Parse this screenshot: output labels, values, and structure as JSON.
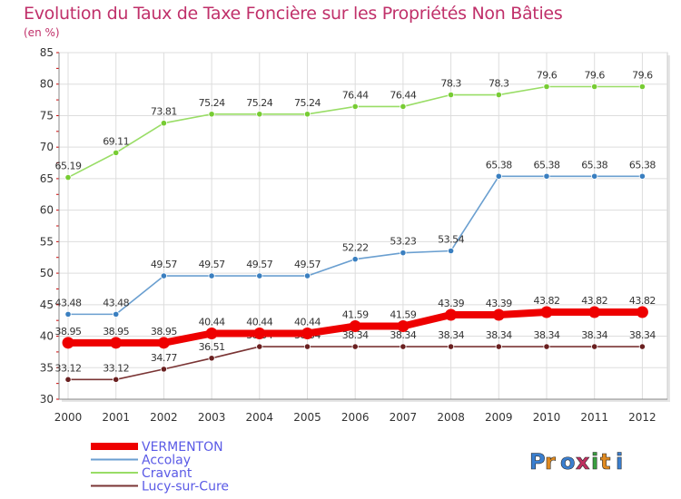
{
  "title": "Evolution du Taux de Taxe Foncière sur les Propriétés Non Bâties",
  "subtitle": "(en %)",
  "logo": "Proxiti",
  "colors": {
    "title": "#c0306a",
    "legend_text": "#5a5ae6",
    "axis": "#888888",
    "grid": "#dddddd",
    "tick_red": "#cc0000"
  },
  "chart_data": {
    "type": "line",
    "title": "Evolution du Taux de Taxe Foncière sur les Propriétés Non Bâties",
    "ylabel": "(en %)",
    "xlabel": "",
    "x": [
      "2000",
      "2001",
      "2002",
      "2003",
      "2004",
      "2005",
      "2006",
      "2007",
      "2008",
      "2009",
      "2010",
      "2011",
      "2012"
    ],
    "ylim": [
      30,
      85
    ],
    "yticks": [
      30,
      35,
      40,
      45,
      50,
      55,
      60,
      65,
      70,
      75,
      80,
      85
    ],
    "grid": true,
    "legend_position": "bottom-left",
    "series": [
      {
        "name": "Cravant",
        "color": "#99dd66",
        "marker": "#77cc33",
        "emphasis": false,
        "values": [
          65.19,
          69.11,
          73.81,
          75.24,
          75.24,
          75.24,
          76.44,
          76.44,
          78.3,
          78.3,
          79.6,
          79.6,
          79.6
        ],
        "labels": [
          "65.19",
          "69.11",
          "73.81",
          "75.24",
          "75.24",
          "75.24",
          "76.44",
          "76.44",
          "78.3",
          "78.3",
          "79.6",
          "79.6",
          "79.6"
        ]
      },
      {
        "name": "Accolay",
        "color": "#6a9fd0",
        "marker": "#3a7fc0",
        "emphasis": false,
        "values": [
          43.48,
          43.48,
          49.57,
          49.57,
          49.57,
          49.57,
          52.22,
          53.23,
          53.54,
          65.38,
          65.38,
          65.38,
          65.38
        ],
        "labels": [
          "43.48",
          "43.48",
          "49.57",
          "49.57",
          "49.57",
          "49.57",
          "52.22",
          "53.23",
          "53.54",
          "65.38",
          "65.38",
          "65.38",
          "65.38"
        ]
      },
      {
        "name": "Lucy-sur-Cure",
        "color": "#7a3434",
        "marker": "#6a2020",
        "emphasis": false,
        "values": [
          33.12,
          33.12,
          34.77,
          36.51,
          38.34,
          38.34,
          38.34,
          38.34,
          38.34,
          38.34,
          38.34,
          38.34,
          38.34
        ],
        "labels": [
          "33.12",
          "33.12",
          "34.77",
          "36.51",
          "38.34",
          "38.34",
          "38.34",
          "38.34",
          "38.34",
          "38.34",
          "38.34",
          "38.34",
          "38.34"
        ]
      },
      {
        "name": "VERMENTON",
        "color": "#ee0000",
        "marker": "#ee0000",
        "emphasis": true,
        "values": [
          38.95,
          38.95,
          38.95,
          40.44,
          40.44,
          40.44,
          41.59,
          41.59,
          43.39,
          43.39,
          43.82,
          43.82,
          43.82
        ],
        "labels": [
          "38.95",
          "38.95",
          "38.95",
          "40.44",
          "40.44",
          "40.44",
          "41.59",
          "41.59",
          "43.39",
          "43.39",
          "43.82",
          "43.82",
          "43.82"
        ]
      }
    ],
    "legend_order": [
      "VERMENTON",
      "Accolay",
      "Cravant",
      "Lucy-sur-Cure"
    ]
  }
}
